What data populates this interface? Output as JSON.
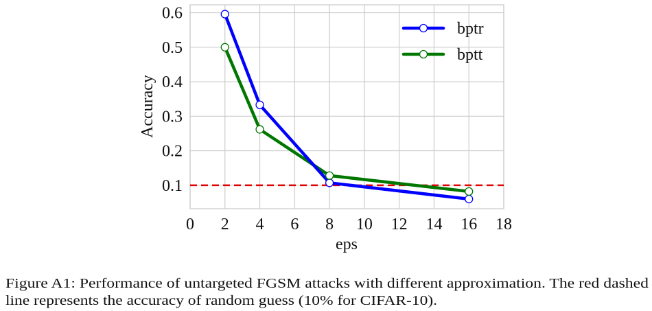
{
  "chart_data": {
    "type": "line",
    "xlabel": "eps",
    "ylabel": "Accuracy",
    "xlim": [
      0,
      18
    ],
    "ylim": [
      0.032,
      0.623
    ],
    "xticks": [
      0,
      2,
      4,
      6,
      8,
      10,
      12,
      14,
      16,
      18
    ],
    "yticks": [
      0.1,
      0.2,
      0.3,
      0.4,
      0.5,
      0.6
    ],
    "ytick_labels": [
      "0.1",
      "0.2",
      "0.3",
      "0.4",
      "0.5",
      "0.6"
    ],
    "grid": true,
    "legend_position": "top-right",
    "x": [
      2,
      4,
      8,
      16
    ],
    "series": [
      {
        "name": "bptr",
        "color": "#0000ff",
        "values": [
          0.596,
          0.333,
          0.107,
          0.06
        ]
      },
      {
        "name": "bptt",
        "color": "#007700",
        "values": [
          0.5,
          0.262,
          0.128,
          0.082
        ]
      }
    ],
    "reference_line": {
      "y": 0.1,
      "color": "#e00000",
      "style": "dashed"
    }
  },
  "caption": {
    "line1": "Figure A1: Performance of untargeted FGSM attacks with different approximation. The red dashed",
    "line2": "line represents the accuracy of random guess (10% for CIFAR-10)."
  }
}
